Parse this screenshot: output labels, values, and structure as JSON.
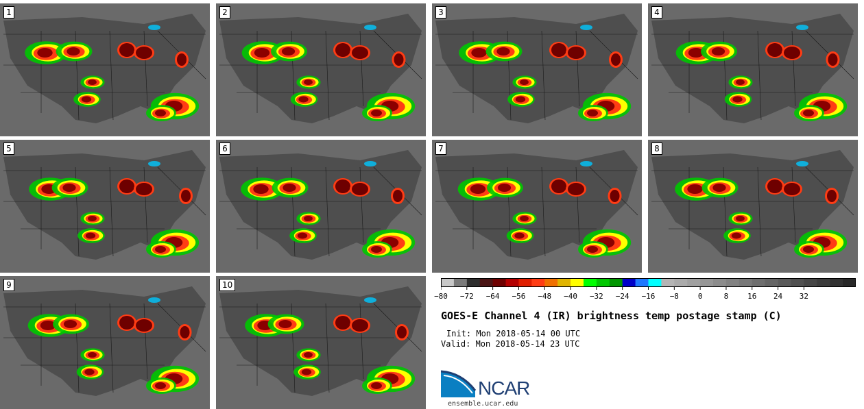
{
  "panels": [
    {
      "label": "1"
    },
    {
      "label": "2"
    },
    {
      "label": "3"
    },
    {
      "label": "4"
    },
    {
      "label": "5"
    },
    {
      "label": "6"
    },
    {
      "label": "7"
    },
    {
      "label": "8"
    },
    {
      "label": "9"
    },
    {
      "label": "10"
    }
  ],
  "colorbar": {
    "ticks": [
      "−80",
      "−72",
      "−64",
      "−56",
      "−48",
      "−40",
      "−32",
      "−24",
      "−16",
      "−8",
      "0",
      "8",
      "16",
      "24",
      "32"
    ],
    "colors": [
      "#c8c8c8",
      "#7a7a7a",
      "#2e2e2e",
      "#4a1414",
      "#6e0000",
      "#b40000",
      "#e01e00",
      "#ff3c14",
      "#f07000",
      "#e0b400",
      "#ffff00",
      "#00ff00",
      "#00c800",
      "#009600",
      "#0000c8",
      "#1e78ff",
      "#00ffff",
      "#b4b4b4",
      "#aaaaaa",
      "#a0a0a0",
      "#969696",
      "#8c8c8c",
      "#828282",
      "#787878",
      "#6e6e6e",
      "#646464",
      "#5a5a5a",
      "#505050",
      "#464646",
      "#3c3c3c",
      "#323232",
      "#282828"
    ]
  },
  "title": "GOES-E Channel 4 (IR) brightness temp postage stamp (C)",
  "init": "Init: Mon 2018-05-14 00 UTC",
  "valid": "Valid: Mon 2018-05-14 23 UTC",
  "logo": {
    "name": "NCAR",
    "url": "ensemble.ucar.edu"
  }
}
